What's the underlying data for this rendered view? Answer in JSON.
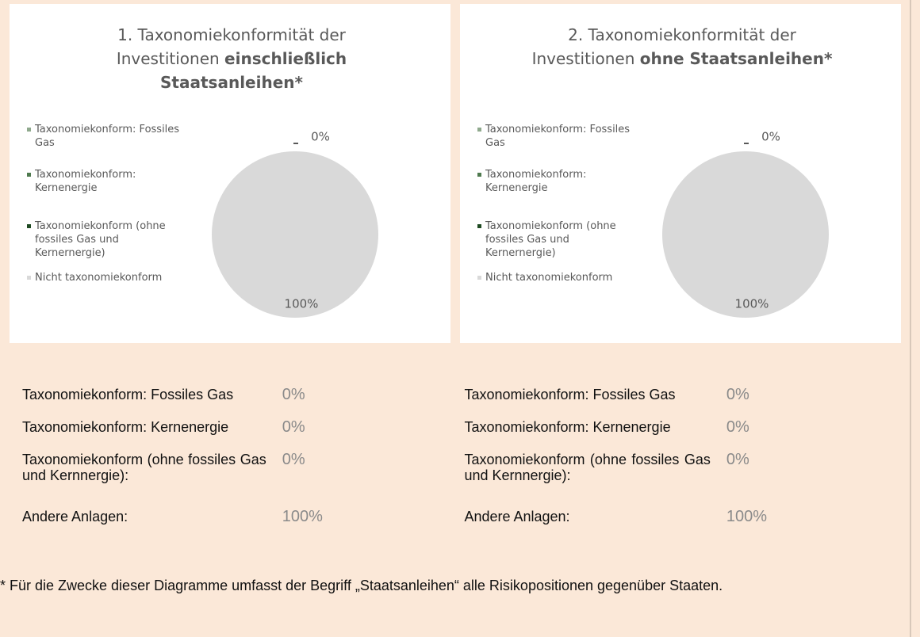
{
  "chart_data": [
    {
      "type": "pie",
      "title": "1. Taxonomiekonformität der Investitionen",
      "title_bold": "einschließlich Staatsanleihen*",
      "categories": [
        "Taxonomiekonform: Fossiles Gas",
        "Taxonomiekonform: Kernenergie",
        "Taxonomiekonform (ohne fossiles Gas und Kernernergie)",
        "Nicht taxonomiekonform"
      ],
      "values": [
        0,
        0,
        0,
        100
      ],
      "value_labels": [
        "0%",
        "0%",
        "0%",
        "100%"
      ],
      "colors": [
        "#8fa98d",
        "#4f7a4f",
        "#1f4a22",
        "#d9d9d9"
      ]
    },
    {
      "type": "pie",
      "title": "2. Taxonomiekonformität der Investitionen",
      "title_bold": "ohne Staatsanleihen*",
      "categories": [
        "Taxonomiekonform: Fossiles Gas",
        "Taxonomiekonform: Kernenergie",
        "Taxonomiekonform (ohne fossiles Gas und Kernernergie)",
        "Nicht taxonomiekonform"
      ],
      "values": [
        0,
        0,
        0,
        100
      ],
      "value_labels": [
        "0%",
        "0%",
        "0%",
        "100%"
      ],
      "colors": [
        "#8fa98d",
        "#4f7a4f",
        "#1f4a22",
        "#d9d9d9"
      ]
    }
  ],
  "table": {
    "rows": [
      [
        "Taxonomiekonform: Fossiles Gas",
        "0%",
        "Taxonomiekonform: Fossiles Gas",
        "0%"
      ],
      [
        "Taxonomiekonform: Kernenergie",
        "0%",
        "Taxonomiekonform: Kernenergie",
        "0%"
      ],
      [
        "Taxonomiekonform (ohne fossiles Gas und Kernnergie):",
        "0%",
        "Taxonomiekonform (ohne fossiles Gas und Kernnergie):",
        "0%"
      ],
      [
        "Andere Anlagen:",
        "100%",
        "Andere Anlagen:",
        "100%"
      ]
    ]
  },
  "footnote": "* Für die Zwecke dieser Diagramme umfasst der Begriff „Staatsanleihen“ alle Risikopositionen gegenüber Staaten."
}
